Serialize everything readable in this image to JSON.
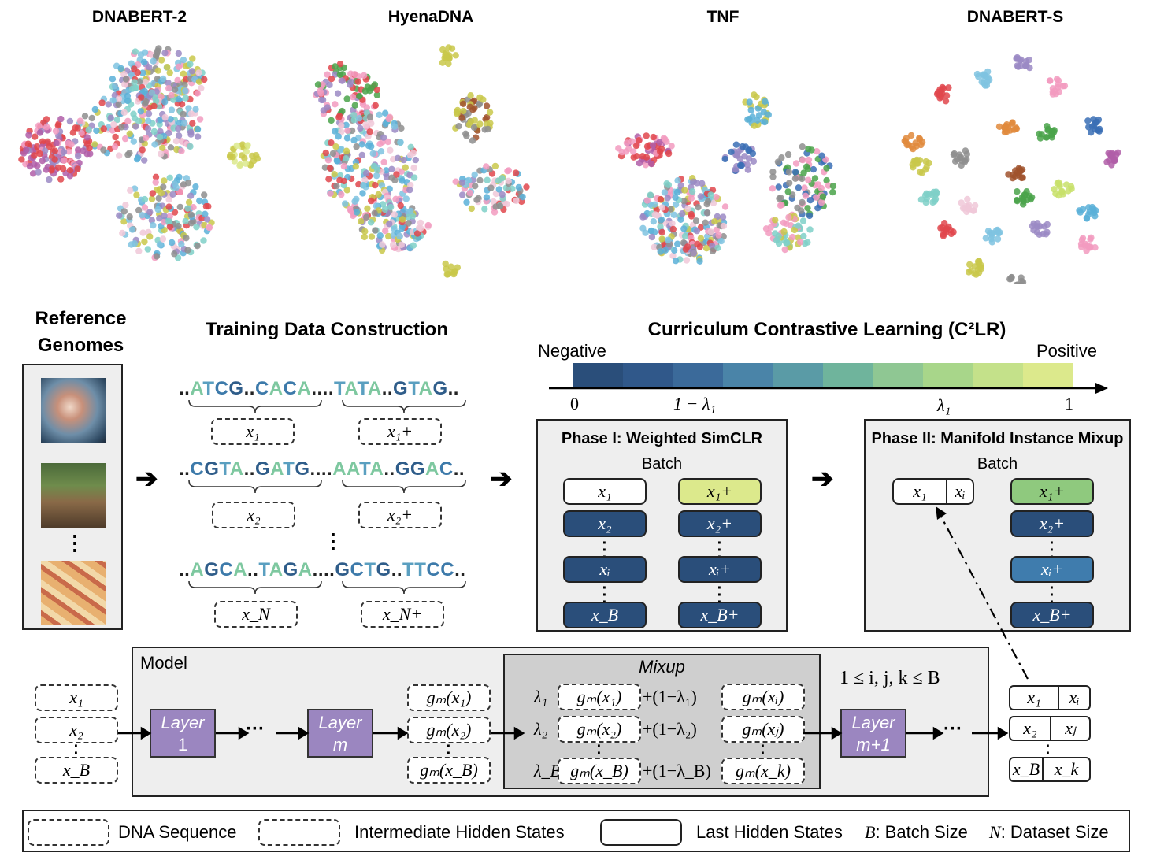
{
  "embeddings": {
    "titles": [
      "DNABERT-2",
      "HyenaDNA",
      "TNF",
      "DNABERT-S"
    ]
  },
  "reference": {
    "title_line1": "Reference",
    "title_line2": "Genomes",
    "dots": "⋮"
  },
  "training": {
    "title": "Training Data Construction",
    "rows": [
      {
        "left": "..ATCG..CACA....",
        "right": "TATA..GTAG..",
        "x": "x₁",
        "xp": "x₁+"
      },
      {
        "left": "..CGTA..GATG....",
        "right": "AATA..GGAC..",
        "x": "x₂",
        "xp": "x₂+"
      },
      {
        "left": "..AGCA..TAGA....",
        "right": "GCTG..TTCC..",
        "x": "x_N",
        "xp": "x_N+"
      }
    ],
    "dots": "⋮"
  },
  "c2lr": {
    "title": "Curriculum Contrastive Learning (C²LR)",
    "negative": "Negative",
    "positive": "Positive",
    "tick_0": "0",
    "tick_1m": "1 − λ₁",
    "tick_l1": "λ₁",
    "tick_1": "1",
    "colors": [
      "#2a4e7a",
      "#30588a",
      "#3b6a9a",
      "#4a84a8",
      "#5a9ba6",
      "#6fb49c",
      "#8fc793",
      "#a8d68a",
      "#c4e18a",
      "#dce98c"
    ]
  },
  "phase1": {
    "title": "Phase I: Weighted SimCLR",
    "batch": "Batch",
    "left": [
      "x₁",
      "x₂",
      "xᵢ",
      "x_B"
    ],
    "right": [
      "x₁+",
      "x₂+",
      "xᵢ+",
      "x_B+"
    ],
    "pos_color": "#dce98c",
    "neg_color": "#2a4e7a"
  },
  "phase2": {
    "title": "Phase II: Manifold Instance Mixup",
    "batch": "Batch",
    "left_a": "x₁",
    "left_b": "xᵢ",
    "right": [
      "x₁+",
      "x₂+",
      "xᵢ+",
      "x_B+"
    ],
    "right_colors": [
      "#8fc97e",
      "#2a4e7a",
      "#3f7cad",
      "#2a4e7a"
    ]
  },
  "model": {
    "label": "Model",
    "inputs": [
      "x₁",
      "x₂",
      "x_B"
    ],
    "layer1": [
      "Layer",
      "1"
    ],
    "layerm": [
      "Layer",
      "m"
    ],
    "layerm1": [
      "Layer",
      "m+1"
    ],
    "hidden": [
      "gₘ(x₁)",
      "gₘ(x₂)",
      "gₘ(x_B)"
    ],
    "mixup_title": "Mixup",
    "mix_rows": [
      {
        "lam": "λ₁",
        "a": "gₘ(x₁)",
        "op": "+(1−λ₁)",
        "b": "gₘ(xᵢ)"
      },
      {
        "lam": "λ₂",
        "a": "gₘ(x₂)",
        "op": "+(1−λ₂)",
        "b": "gₘ(xⱼ)"
      },
      {
        "lam": "λ_B",
        "a": "gₘ(x_B)",
        "op": "+(1−λ_B)",
        "b": "gₘ(x_k)"
      }
    ],
    "constraint": "1 ≤ i, j, k ≤ B",
    "ellipsis": "···",
    "outputs": [
      [
        "x₁",
        "xᵢ"
      ],
      [
        "x₂",
        "xⱼ"
      ],
      [
        "x_B",
        "x_k"
      ]
    ]
  },
  "legend": {
    "dna": "DNA Sequence",
    "inter": "Intermediate Hidden States",
    "last": "Last Hidden States",
    "batch_sym": "B",
    "batch_text": ": Batch Size",
    "ds_sym": "N",
    "ds_text": ": Dataset Size"
  }
}
